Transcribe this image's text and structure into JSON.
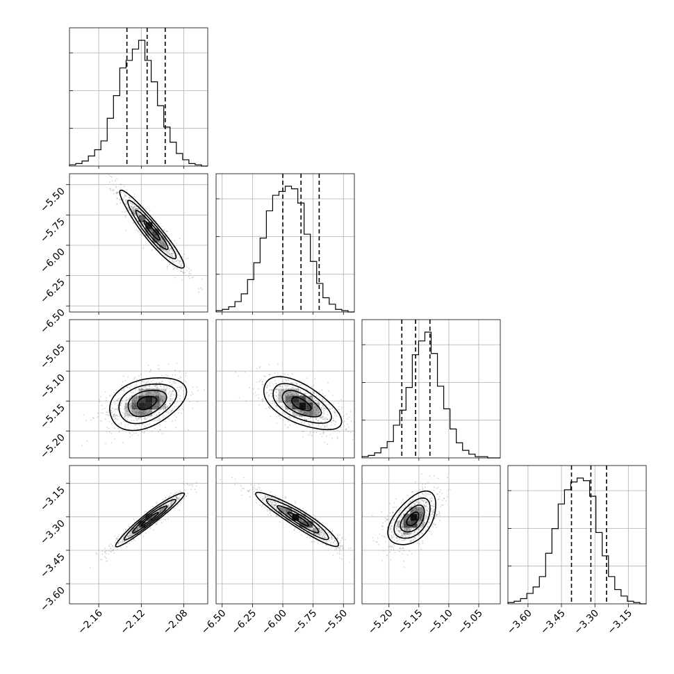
{
  "chart_data": {
    "type": "corner",
    "description_of_layout": "lower-triangular corner plot of 4 parameters",
    "grid": true,
    "parameters": [
      {
        "name": "",
        "ticks": [
          -2.16,
          -2.12,
          -2.08
        ],
        "tick_labels": [
          "−2.16",
          "−2.12",
          "−2.08"
        ],
        "range": [
          -2.1875,
          -2.0575
        ],
        "quantiles": [
          -2.1335,
          -2.1145,
          -2.0975
        ],
        "histogram_bins": 22,
        "histogram_counts": [
          0.01,
          0.02,
          0.04,
          0.08,
          0.13,
          0.2,
          0.38,
          0.56,
          0.78,
          0.84,
          0.93,
          1.0,
          0.84,
          0.67,
          0.48,
          0.31,
          0.19,
          0.1,
          0.05,
          0.02,
          0.01,
          0.0
        ]
      },
      {
        "name": "",
        "ticks": [
          -6.5,
          -6.25,
          -6.0,
          -5.75,
          -5.5
        ],
        "tick_labels": [
          "−6.50",
          "−6.25",
          "−6.00",
          "−5.75",
          "−5.50"
        ],
        "range": [
          -6.55,
          -5.41
        ],
        "quantiles": [
          -6.0,
          -5.85,
          -5.7
        ],
        "histogram_bins": 22,
        "histogram_counts": [
          0.01,
          0.02,
          0.04,
          0.08,
          0.14,
          0.25,
          0.38,
          0.57,
          0.78,
          0.9,
          0.93,
          0.97,
          0.95,
          0.84,
          0.6,
          0.39,
          0.22,
          0.11,
          0.06,
          0.02,
          0.01,
          0.0
        ]
      },
      {
        "name": "",
        "ticks": [
          -5.2,
          -5.15,
          -5.1,
          -5.05
        ],
        "tick_labels": [
          "−5.20",
          "−5.15",
          "−5.10",
          "−5.05"
        ],
        "range": [
          -5.245,
          -5.014
        ],
        "quantiles": [
          -5.1785,
          -5.1555,
          -5.1315
        ],
        "histogram_bins": 22,
        "histogram_counts": [
          0.01,
          0.02,
          0.04,
          0.08,
          0.13,
          0.26,
          0.38,
          0.56,
          0.82,
          0.93,
          1.0,
          0.83,
          0.57,
          0.39,
          0.23,
          0.12,
          0.06,
          0.03,
          0.01,
          0.01,
          0.0,
          0.0
        ]
      },
      {
        "name": "",
        "ticks": [
          -3.6,
          -3.45,
          -3.3,
          -3.15
        ],
        "tick_labels": [
          "−3.60",
          "−3.45",
          "−3.30",
          "−3.15"
        ],
        "range": [
          -3.69,
          -3.07
        ],
        "quantiles": [
          -3.405,
          -3.318,
          -3.248
        ],
        "histogram_bins": 22,
        "histogram_counts": [
          0.01,
          0.02,
          0.04,
          0.08,
          0.13,
          0.21,
          0.39,
          0.58,
          0.77,
          0.88,
          0.94,
          0.97,
          0.95,
          0.83,
          0.55,
          0.37,
          0.21,
          0.11,
          0.06,
          0.02,
          0.01,
          0.0
        ]
      }
    ],
    "pairs": [
      {
        "row": 1,
        "col": 0,
        "mean": [
          -2.11,
          -5.88
        ],
        "sd": [
          0.015,
          0.16
        ],
        "rho": -0.94
      },
      {
        "row": 2,
        "col": 0,
        "mean": [
          -2.115,
          -5.153
        ],
        "sd": [
          0.018,
          0.022
        ],
        "rho": 0.35
      },
      {
        "row": 2,
        "col": 1,
        "mean": [
          -5.85,
          -5.155
        ],
        "sd": [
          0.16,
          0.022
        ],
        "rho": -0.6
      },
      {
        "row": 3,
        "col": 0,
        "mean": [
          -2.112,
          -3.31
        ],
        "sd": [
          0.016,
          0.06
        ],
        "rho": 0.96
      },
      {
        "row": 3,
        "col": 1,
        "mean": [
          -5.87,
          -3.31
        ],
        "sd": [
          0.17,
          0.06
        ],
        "rho": -0.93
      },
      {
        "row": 3,
        "col": 2,
        "mean": [
          -5.16,
          -3.31
        ],
        "sd": [
          0.02,
          0.06
        ],
        "rho": 0.5
      }
    ],
    "contour_levels_sigma": [
      0.5,
      1.0,
      1.5,
      2.0
    ],
    "colors": {
      "line": "#000000",
      "density": "#000000",
      "points": "#808080",
      "grid": "#b0b0b0"
    }
  }
}
